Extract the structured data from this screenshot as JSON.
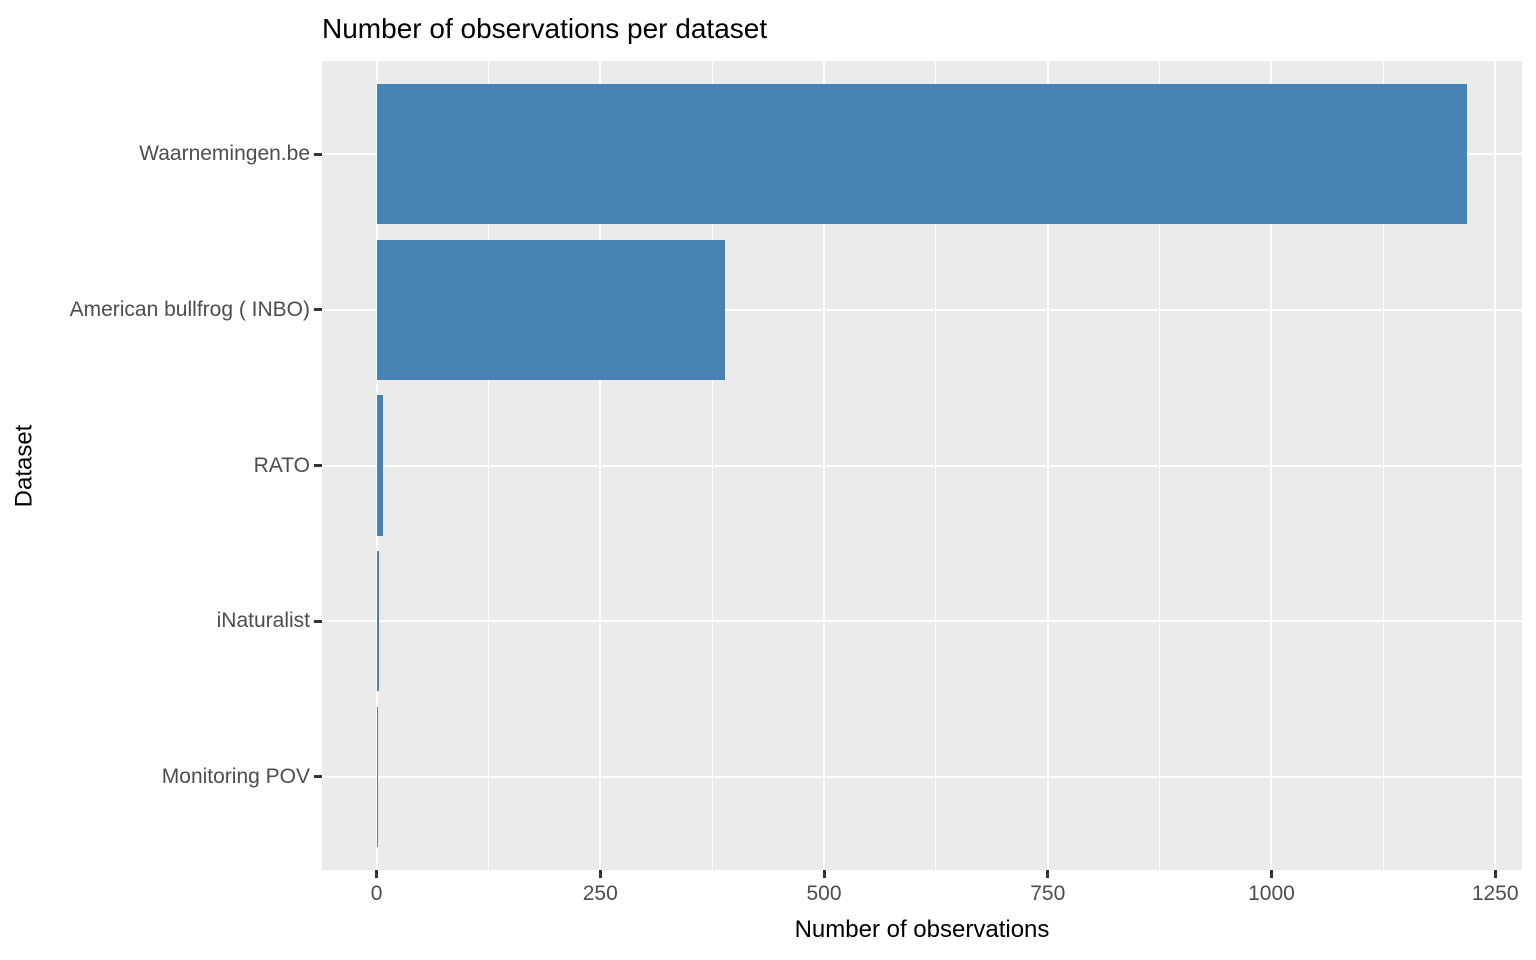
{
  "chart_data": {
    "type": "bar",
    "orientation": "horizontal",
    "title": "Number of observations per dataset",
    "xlabel": "Number of observations",
    "ylabel": "Dataset",
    "categories": [
      "Waarnemingen.be",
      "American bullfrog ( INBO)",
      "RATO",
      "iNaturalist",
      "Monitoring POV"
    ],
    "values": [
      1219,
      389,
      7,
      3,
      1
    ],
    "x_ticks": [
      0,
      250,
      500,
      750,
      1000,
      1250
    ],
    "xlim": [
      0,
      1250
    ],
    "grid": "white major and minor vertical gridlines, white major horizontal gridlines on grey panel",
    "legend": "none",
    "colors": {
      "bar_fill": "#4682B4",
      "panel_background": "#EBEBEB",
      "gridline": "#FFFFFF",
      "tick_label_text": "#4D4D4D",
      "tick_mark": "#333333",
      "title_text": "#000000"
    }
  }
}
